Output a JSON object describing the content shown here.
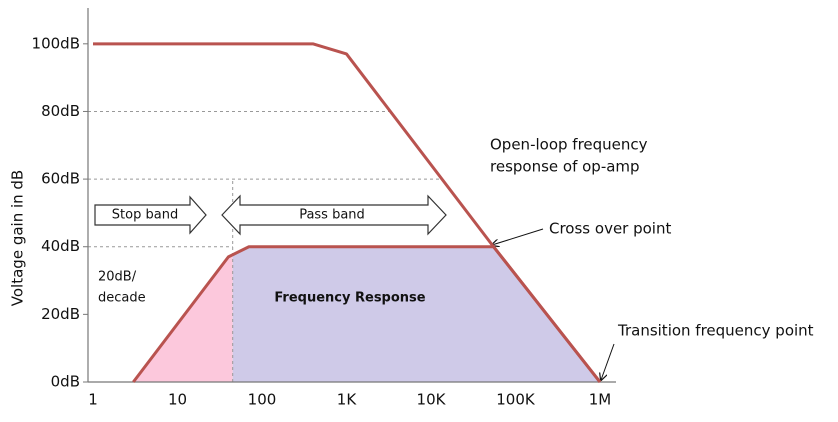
{
  "chart_data": {
    "type": "line",
    "ylabel": "Voltage gain in dB",
    "xscale": "log",
    "xlim": [
      1,
      1000000
    ],
    "xticks": [
      1,
      10,
      100,
      {
        "value": 1000,
        "label": "1K"
      },
      {
        "value": 10000,
        "label": "10K"
      },
      {
        "value": 100000,
        "label": "100K"
      },
      {
        "value": 1000000,
        "label": "1M"
      }
    ],
    "ylim": [
      0,
      110
    ],
    "yticks": [
      {
        "value": 0,
        "label": "0dB"
      },
      {
        "value": 20,
        "label": "20dB"
      },
      {
        "value": 40,
        "label": "40dB"
      },
      {
        "value": 60,
        "label": "60dB"
      },
      {
        "value": 80,
        "label": "80dB"
      },
      {
        "value": 100,
        "label": "100dB"
      }
    ],
    "series": [
      {
        "color": "#b9534f",
        "x": [
          1,
          400,
          1000,
          55000,
          1000000
        ],
        "values": [
          100,
          100,
          97,
          40,
          0
        ]
      },
      {
        "color": "#b9534f",
        "x": [
          3,
          40,
          70,
          55000,
          1000000
        ],
        "values": [
          0,
          37,
          40,
          40,
          0
        ]
      }
    ],
    "stop_band_edge": 45,
    "fill_colors": [
      "#fcc8dc",
      "#cfcae8"
    ],
    "annotations": {
      "open_loop": [
        "Open-loop frequency",
        "response of op-amp"
      ],
      "slope": [
        "20dB/",
        "decade"
      ],
      "stop_band": "Stop band",
      "pass_band": "Pass band",
      "frequency_response": "Frequency Response",
      "cross_over": "Cross over point",
      "transition": "Transition frequency point"
    }
  }
}
